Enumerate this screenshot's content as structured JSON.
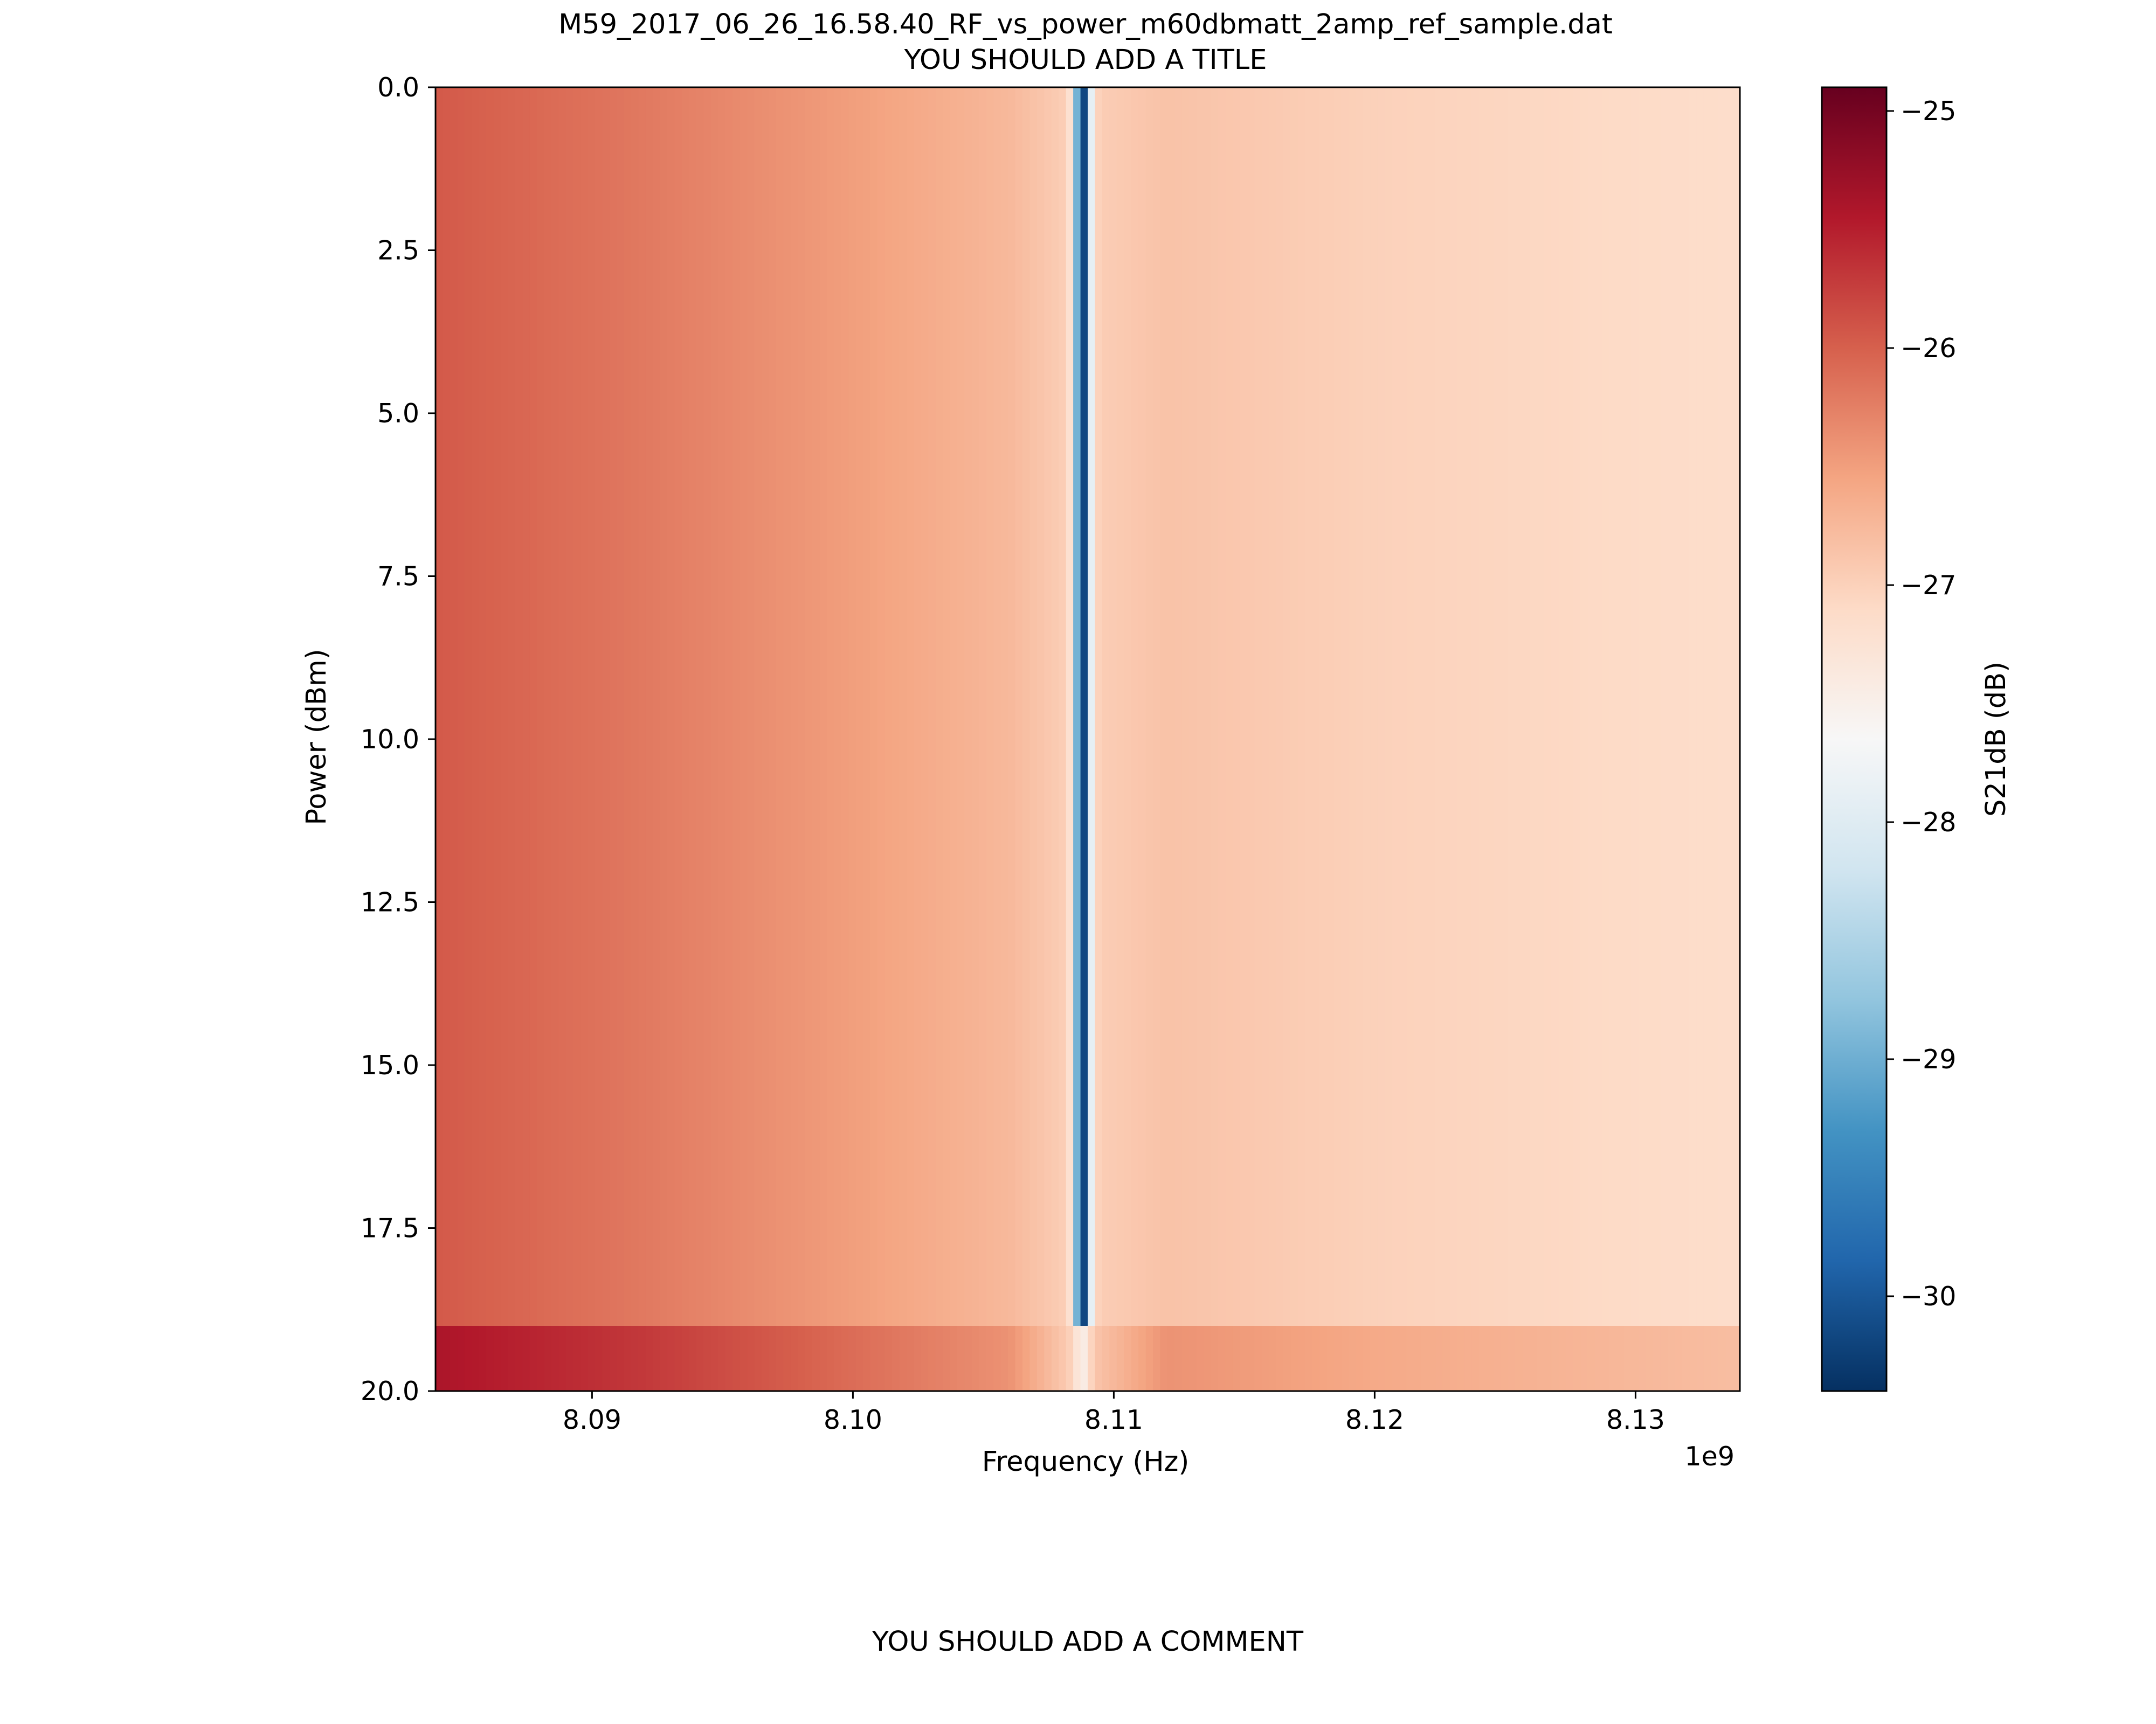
{
  "figure": {
    "title_line1": "M59_2017_06_26_16.58.40_RF_vs_power_m60dbmatt_2amp_ref_sample.dat",
    "title_line2": "YOU SHOULD ADD A TITLE",
    "comment": "YOU SHOULD ADD A COMMENT"
  },
  "chart_data": {
    "type": "heatmap",
    "title": "M59_2017_06_26_16.58.40_RF_vs_power_m60dbmatt_2amp_ref_sample.dat\nYOU SHOULD ADD A TITLE",
    "xlabel": "Frequency (Hz)",
    "ylabel": "Power (dBm)",
    "x_offset_label": "1e9",
    "xlim": [
      8084000000.0,
      8134000000.0
    ],
    "ylim": [
      20.0,
      0.0
    ],
    "y_inverted": true,
    "x_ticks": [
      8090000000.0,
      8100000000.0,
      8110000000.0,
      8120000000.0,
      8130000000.0
    ],
    "x_tick_labels": [
      "8.09",
      "8.10",
      "8.11",
      "8.12",
      "8.13"
    ],
    "y_ticks": [
      0.0,
      2.5,
      5.0,
      7.5,
      10.0,
      12.5,
      15.0,
      17.5,
      20.0
    ],
    "y_tick_labels": [
      "0.0",
      "2.5",
      "5.0",
      "7.5",
      "10.0",
      "12.5",
      "15.0",
      "17.5",
      "20.0"
    ],
    "colorbar": {
      "label": "S21dB (dB)",
      "colormap": "RdBu_r",
      "vmin": -30.4,
      "vmax": -24.9,
      "ticks": [
        -25,
        -26,
        -27,
        -28,
        -29,
        -30
      ],
      "tick_labels": [
        "−25",
        "−26",
        "−27",
        "−28",
        "−29",
        "−30"
      ]
    },
    "power_levels": [
      0,
      1,
      2,
      3,
      4,
      5,
      6,
      7,
      8,
      9,
      10,
      11,
      12,
      13,
      14,
      15,
      16,
      17,
      18,
      19,
      20
    ],
    "resonance": {
      "frequency": 8108800000.0,
      "depth_dB": -30.3,
      "width_hz": 300000
    },
    "profile": {
      "frequency": [
        8084000000.0,
        8092000000.0,
        8100000000.0,
        8106000000.0,
        8108500000.0,
        8112000000.0,
        8120000000.0,
        8134000000.0
      ],
      "s21_low_power": [
        -25.95,
        -26.2,
        -26.5,
        -26.75,
        -27.0,
        -26.85,
        -27.0,
        -27.15
      ],
      "s21_power_19dBm": [
        -25.4,
        -25.7,
        -26.1,
        -26.4,
        -27.0,
        -26.4,
        -26.6,
        -26.8
      ],
      "s21_power_20dBm": [
        -24.9,
        -25.2,
        -25.6,
        -26.1,
        -27.1,
        -25.9,
        -26.1,
        -26.3
      ]
    },
    "grid": false
  }
}
